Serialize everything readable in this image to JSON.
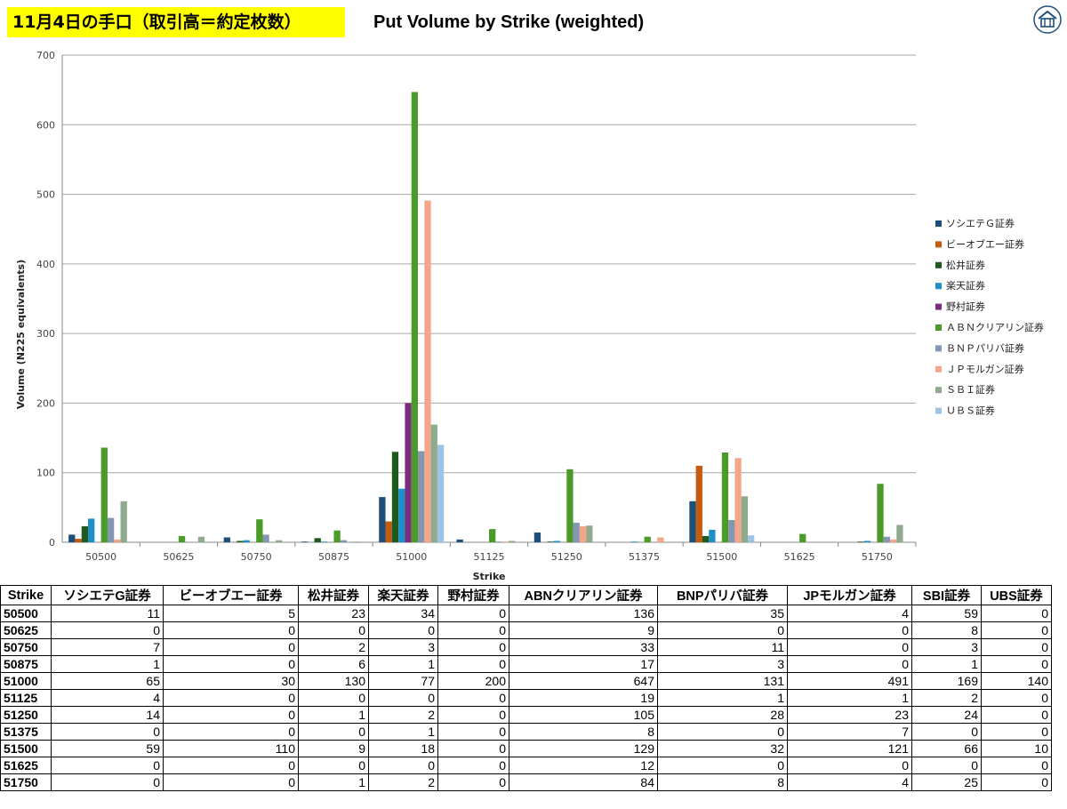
{
  "header": {
    "badge": "11月4日の手口（取引高＝約定枚数）",
    "title": "Put Volume by Strike (weighted)"
  },
  "colors": {
    "badge_bg": "#ffff00",
    "series": [
      "#1f4e79",
      "#c55a11",
      "#1e5a1e",
      "#1f8fc8",
      "#7b2c7e",
      "#4c9a2a",
      "#8497b0",
      "#f4a58a",
      "#8faa8c",
      "#9dc3e6"
    ]
  },
  "logo": {
    "icon": "house-logo-icon"
  },
  "chart_data": {
    "type": "bar",
    "xlabel": "Strike",
    "ylabel": "Volume (N225 equivalents)",
    "ylim": [
      0,
      700
    ],
    "yticks": [
      "0",
      "100",
      "200",
      "300",
      "400",
      "500",
      "600",
      "700"
    ],
    "grid": true,
    "legend_position": "right",
    "categories": [
      "50500",
      "50625",
      "50750",
      "50875",
      "51000",
      "51125",
      "51250",
      "51375",
      "51500",
      "51625",
      "51750"
    ],
    "series": [
      {
        "name": "ソシエテＧ証券",
        "values": [
          11,
          0,
          7,
          1,
          65,
          4,
          14,
          0,
          59,
          0,
          0
        ]
      },
      {
        "name": "ビーオブエー証券",
        "values": [
          5,
          0,
          0,
          0,
          30,
          0,
          0,
          0,
          110,
          0,
          0
        ]
      },
      {
        "name": "松井証券",
        "values": [
          23,
          0,
          2,
          6,
          130,
          0,
          1,
          0,
          9,
          0,
          1
        ]
      },
      {
        "name": "楽天証券",
        "values": [
          34,
          0,
          3,
          1,
          77,
          0,
          2,
          1,
          18,
          0,
          2
        ]
      },
      {
        "name": "野村証券",
        "values": [
          0,
          0,
          0,
          0,
          200,
          0,
          0,
          0,
          0,
          0,
          0
        ]
      },
      {
        "name": "ＡＢＮクリアリン証券",
        "values": [
          136,
          9,
          33,
          17,
          647,
          19,
          105,
          8,
          129,
          12,
          84
        ]
      },
      {
        "name": "ＢＮＰパリバ証券",
        "values": [
          35,
          0,
          11,
          3,
          131,
          1,
          28,
          0,
          32,
          0,
          8
        ]
      },
      {
        "name": "ＪＰモルガン証券",
        "values": [
          4,
          0,
          0,
          0,
          491,
          1,
          23,
          7,
          121,
          0,
          4
        ]
      },
      {
        "name": "ＳＢＩ証券",
        "values": [
          59,
          8,
          3,
          1,
          169,
          2,
          24,
          0,
          66,
          0,
          25
        ]
      },
      {
        "name": "ＵＢＳ証券",
        "values": [
          0,
          0,
          0,
          0,
          140,
          0,
          0,
          0,
          10,
          0,
          0
        ]
      }
    ]
  },
  "table": {
    "headers": [
      "Strike",
      "ソシエテG証券",
      "ビーオブエー証券",
      "松井証券",
      "楽天証券",
      "野村証券",
      "ABNクリアリン証券",
      "BNPパリバ証券",
      "JPモルガン証券",
      "SBI証券",
      "UBS証券"
    ],
    "rows": [
      [
        "50500",
        "11",
        "5",
        "23",
        "34",
        "0",
        "136",
        "35",
        "4",
        "59",
        "0"
      ],
      [
        "50625",
        "0",
        "0",
        "0",
        "0",
        "0",
        "9",
        "0",
        "0",
        "8",
        "0"
      ],
      [
        "50750",
        "7",
        "0",
        "2",
        "3",
        "0",
        "33",
        "11",
        "0",
        "3",
        "0"
      ],
      [
        "50875",
        "1",
        "0",
        "6",
        "1",
        "0",
        "17",
        "3",
        "0",
        "1",
        "0"
      ],
      [
        "51000",
        "65",
        "30",
        "130",
        "77",
        "200",
        "647",
        "131",
        "491",
        "169",
        "140"
      ],
      [
        "51125",
        "4",
        "0",
        "0",
        "0",
        "0",
        "19",
        "1",
        "1",
        "2",
        "0"
      ],
      [
        "51250",
        "14",
        "0",
        "1",
        "2",
        "0",
        "105",
        "28",
        "23",
        "24",
        "0"
      ],
      [
        "51375",
        "0",
        "0",
        "0",
        "1",
        "0",
        "8",
        "0",
        "7",
        "0",
        "0"
      ],
      [
        "51500",
        "59",
        "110",
        "9",
        "18",
        "0",
        "129",
        "32",
        "121",
        "66",
        "10"
      ],
      [
        "51625",
        "0",
        "0",
        "0",
        "0",
        "0",
        "12",
        "0",
        "0",
        "0",
        "0"
      ],
      [
        "51750",
        "0",
        "0",
        "1",
        "2",
        "0",
        "84",
        "8",
        "4",
        "25",
        "0"
      ]
    ]
  }
}
